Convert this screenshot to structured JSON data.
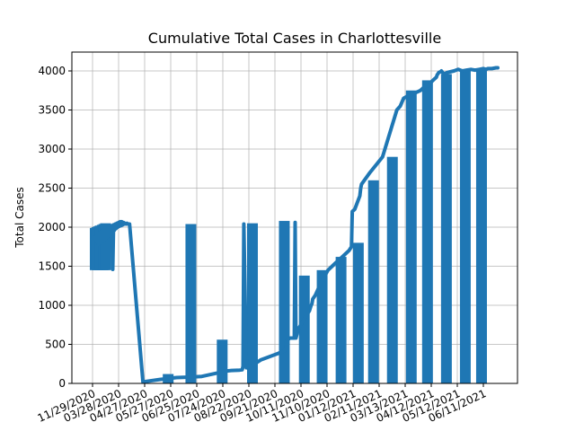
{
  "chart_data": {
    "type": "line",
    "title": "Cumulative Total Cases in Charlottesville",
    "xlabel": "",
    "ylabel": "Total Cases",
    "ylim": [
      0,
      4200
    ],
    "y_ticks": [
      0,
      500,
      1000,
      1500,
      2000,
      2500,
      3000,
      3500,
      4000
    ],
    "x_tick_labels": [
      "11/29/2020",
      "03/28/2020",
      "04/27/2020",
      "05/27/2020",
      "06/25/2020",
      "07/24/2020",
      "08/22/2020",
      "09/21/2020",
      "10/11/2020",
      "11/10/2020",
      "01/12/2021",
      "02/11/2021",
      "03/13/2021",
      "04/12/2021",
      "05/12/2021",
      "06/11/2021"
    ],
    "grid": true,
    "color": "#1f77b4",
    "x_index_range": [
      0,
      482
    ],
    "series": [
      {
        "x": [
          0,
          3,
          5,
          6,
          7,
          9,
          10,
          11,
          12,
          13,
          14,
          15,
          16,
          17,
          18,
          19,
          20,
          21,
          22,
          23,
          24,
          25,
          26,
          27,
          28,
          29,
          30,
          31,
          32,
          33,
          34,
          35,
          36,
          37,
          38,
          39,
          40,
          41,
          42,
          44,
          60,
          80,
          100,
          115,
          130,
          160,
          165,
          175,
          178,
          179,
          180,
          183,
          190,
          200,
          220,
          230,
          231,
          232,
          235,
          240,
          241,
          242,
          245,
          255,
          258,
          260,
          261,
          262,
          265,
          268,
          270,
          275,
          280,
          285,
          290,
          295,
          300,
          305,
          308,
          309,
          312,
          318,
          319,
          320,
          330,
          345,
          362,
          366,
          370,
          375,
          380,
          390,
          395,
          400,
          402,
          405,
          407,
          409,
          410,
          412,
          414,
          415,
          418,
          422,
          430,
          435,
          440,
          445,
          450,
          455,
          460,
          465,
          468,
          470,
          475,
          480,
          482
        ],
        "y": [
          1850,
          1870,
          1820,
          1900,
          1780,
          1930,
          1800,
          1950,
          1820,
          1960,
          1840,
          1980,
          1860,
          1990,
          1880,
          2000,
          1900,
          2010,
          1920,
          2020,
          1460,
          2030,
          1960,
          2040,
          1980,
          2050,
          2000,
          2060,
          2010,
          2070,
          2020,
          2070,
          2030,
          2060,
          2040,
          2050,
          2040,
          2050,
          2040,
          2040,
          20,
          50,
          75,
          80,
          90,
          160,
          165,
          170,
          175,
          220,
          2040,
          200,
          230,
          300,
          380,
          430,
          560,
          560,
          580,
          580,
          2060,
          580,
          700,
          880,
          930,
          1000,
          1020,
          1080,
          1130,
          1200,
          1250,
          1350,
          1450,
          1500,
          1550,
          1600,
          1650,
          1700,
          1750,
          2200,
          2230,
          2400,
          2500,
          2550,
          2700,
          2900,
          3500,
          3550,
          3650,
          3680,
          3700,
          3750,
          3800,
          3820,
          3850,
          3880,
          3900,
          3920,
          3950,
          3980,
          3990,
          4000,
          3960,
          3980,
          4000,
          4020,
          4000,
          4010,
          4020,
          4010,
          4020,
          4030,
          4020,
          4030,
          4030,
          4040,
          4040
        ],
        "bars": [
          {
            "x": 5,
            "base": 1450,
            "top": 1990
          },
          {
            "x": 8,
            "base": 1450,
            "top": 2000
          },
          {
            "x": 11,
            "base": 1450,
            "top": 2010
          },
          {
            "x": 14,
            "base": 1450,
            "top": 2020
          },
          {
            "x": 18,
            "base": 1450,
            "top": 2030
          },
          {
            "x": 21,
            "base": 1450,
            "top": 2040
          },
          {
            "x": 24,
            "base": 1450,
            "top": 2050
          },
          {
            "x": 140,
            "base": 0,
            "top": 120
          },
          {
            "x": 182,
            "base": 0,
            "top": 2040
          },
          {
            "x": 240,
            "base": 0,
            "top": 560
          },
          {
            "x": 296,
            "base": 0,
            "top": 2050
          },
          {
            "x": 355,
            "base": 0,
            "top": 2080
          },
          {
            "x": 392,
            "base": 0,
            "top": 1380
          },
          {
            "x": 425,
            "base": 0,
            "top": 1450
          },
          {
            "x": 460,
            "base": 0,
            "top": 1620
          },
          {
            "x": 492,
            "base": 0,
            "top": 1800
          },
          {
            "x": 520,
            "base": 0,
            "top": 2600
          },
          {
            "x": 555,
            "base": 0,
            "top": 2900
          },
          {
            "x": 590,
            "base": 0,
            "top": 3750
          },
          {
            "x": 620,
            "base": 0,
            "top": 3880
          },
          {
            "x": 655,
            "base": 0,
            "top": 3960
          },
          {
            "x": 690,
            "base": 0,
            "top": 4010
          },
          {
            "x": 720,
            "base": 0,
            "top": 4020
          }
        ]
      }
    ]
  }
}
